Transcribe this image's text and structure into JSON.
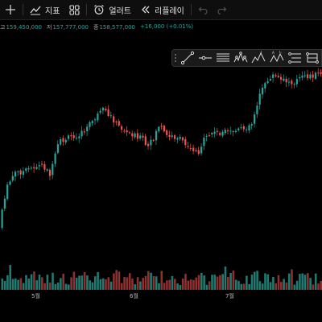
{
  "toolbar": {
    "indicators_label": "지표",
    "alerts_label": "얼러트",
    "replay_label": "리플레이"
  },
  "ohlc": {
    "high_label": "고",
    "high_value": "159,450,000",
    "low_label": "저",
    "low_value": "157,777,000",
    "close_label": "종",
    "close_value": "158,577,000",
    "change": "+16,000 (+0.01%)"
  },
  "colors": {
    "up": "#26a69a",
    "down": "#ef5350",
    "up_volume": "#1f7a6f",
    "down_volume": "#8c3030",
    "background": "#000000"
  },
  "drawing_tools": [
    "trend-line-icon",
    "horizontal-ray-icon",
    "parallel-channel-icon",
    "head-shoulders-pattern-icon",
    "elliott-wave-icon",
    "abcd-pattern-icon",
    "fib-retracement-icon",
    "gann-box-icon"
  ],
  "chart_data": {
    "type": "candlestick",
    "x_ticks": [
      "5월",
      "6월",
      "7월"
    ],
    "grid": false,
    "volume_pane": true,
    "candles": []
  }
}
